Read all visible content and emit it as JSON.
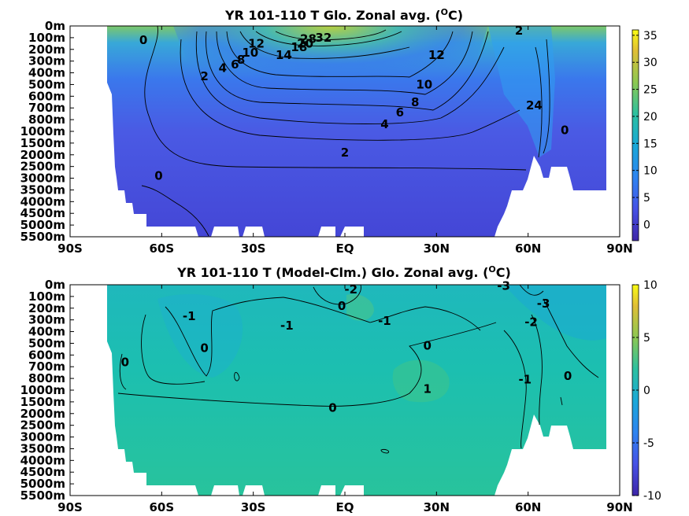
{
  "chart_data": [
    {
      "type": "heatmap",
      "title": "YR 101-110 T Glo. Zonal avg. (",
      "title_sup": "O",
      "title_tail": "C)",
      "x_ticks": [
        "90S",
        "60S",
        "30S",
        "EQ",
        "30N",
        "60N",
        "90N"
      ],
      "x_values": [
        -90,
        -60,
        -30,
        0,
        30,
        60,
        90
      ],
      "y_ticks": [
        "0m",
        "100m",
        "200m",
        "300m",
        "400m",
        "500m",
        "600m",
        "700m",
        "800m",
        "1000m",
        "1500m",
        "2000m",
        "2500m",
        "3000m",
        "3500m",
        "4000m",
        "4500m",
        "5000m",
        "5500m"
      ],
      "colorbar": {
        "min": -3,
        "max": 36,
        "ticks": [
          "35",
          "30",
          "25",
          "20",
          "15",
          "10",
          "5",
          "0"
        ],
        "tick_values": [
          35,
          30,
          25,
          20,
          15,
          10,
          5,
          0
        ]
      },
      "contour_labels": [
        {
          "text": "32",
          "lat": -7,
          "level": 1
        },
        {
          "text": "28",
          "lat": -12,
          "level": 1.1
        },
        {
          "text": "18",
          "lat": -15,
          "level": 1.8
        },
        {
          "text": "20",
          "lat": -13,
          "level": 1.5
        },
        {
          "text": "14",
          "lat": -20,
          "level": 2.5
        },
        {
          "text": "12",
          "lat": -29,
          "level": 1.5
        },
        {
          "text": "10",
          "lat": -31,
          "level": 2.3
        },
        {
          "text": "8",
          "lat": -34,
          "level": 2.9
        },
        {
          "text": "6",
          "lat": -36,
          "level": 3.3
        },
        {
          "text": "4",
          "lat": -40,
          "level": 3.6
        },
        {
          "text": "2",
          "lat": -46,
          "level": 4.3
        },
        {
          "text": "0",
          "lat": -66,
          "level": 1.2
        },
        {
          "text": "12",
          "lat": 30,
          "level": 2.5
        },
        {
          "text": "10",
          "lat": 26,
          "level": 5
        },
        {
          "text": "8",
          "lat": 23,
          "level": 6.5
        },
        {
          "text": "6",
          "lat": 18,
          "level": 7.4
        },
        {
          "text": "4",
          "lat": 13,
          "level": 8.4
        },
        {
          "text": "2",
          "lat": 0,
          "level": 10.8
        },
        {
          "text": "0",
          "lat": -61,
          "level": 12.8
        },
        {
          "text": "24",
          "lat": 62,
          "level": 6.8
        },
        {
          "text": "2",
          "lat": 57,
          "level": 0.4
        },
        {
          "text": "0",
          "lat": 72,
          "level": 8.9
        }
      ]
    },
    {
      "type": "heatmap",
      "title": "YR 101-110 T (Model-Clm.) Glo. Zonal avg. (",
      "title_sup": "O",
      "title_tail": "C)",
      "x_ticks": [
        "90S",
        "60S",
        "30S",
        "EQ",
        "30N",
        "60N",
        "90N"
      ],
      "x_values": [
        -90,
        -60,
        -30,
        0,
        30,
        60,
        90
      ],
      "y_ticks": [
        "0m",
        "100m",
        "200m",
        "300m",
        "400m",
        "500m",
        "600m",
        "700m",
        "800m",
        "1000m",
        "1500m",
        "2000m",
        "2500m",
        "3000m",
        "3500m",
        "4000m",
        "4500m",
        "5000m",
        "5500m"
      ],
      "colorbar": {
        "min": -10,
        "max": 10,
        "ticks": [
          "10",
          "5",
          "0",
          "-5",
          "-10"
        ],
        "tick_values": [
          10,
          5,
          0,
          -5,
          -10
        ]
      },
      "contour_labels": [
        {
          "text": "-1",
          "lat": -51,
          "level": 2.7
        },
        {
          "text": "0",
          "lat": -72,
          "level": 6.6
        },
        {
          "text": "0",
          "lat": -46,
          "level": 5.4
        },
        {
          "text": "-1",
          "lat": -19,
          "level": 3.5
        },
        {
          "text": "-2",
          "lat": 2,
          "level": 0.4
        },
        {
          "text": "0",
          "lat": -1,
          "level": 1.8
        },
        {
          "text": "-1",
          "lat": 13,
          "level": 3.1
        },
        {
          "text": "0",
          "lat": 27,
          "level": 5.2
        },
        {
          "text": "1",
          "lat": 27,
          "level": 8.9
        },
        {
          "text": "0",
          "lat": -4,
          "level": 10.5
        },
        {
          "text": "-3",
          "lat": 52,
          "level": 0.1
        },
        {
          "text": "-3",
          "lat": 65,
          "level": 1.6
        },
        {
          "text": "-2",
          "lat": 61,
          "level": 3.2
        },
        {
          "text": "-1",
          "lat": 59,
          "level": 8.1
        },
        {
          "text": "0",
          "lat": 73,
          "level": 7.8
        }
      ]
    }
  ]
}
